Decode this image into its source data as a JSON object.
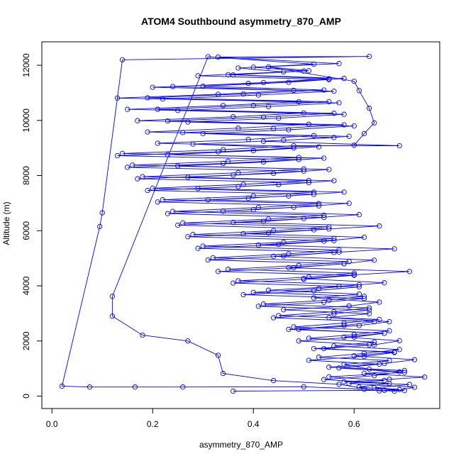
{
  "chart_data": {
    "type": "scatter",
    "title": "ATOM4 Southbound asymmetry_870_AMP",
    "xlabel": "asymmetry_870_AMP",
    "ylabel": "Altitude (m)",
    "xlim": [
      -0.02,
      0.77
    ],
    "ylim": [
      -450,
      12850
    ],
    "x_ticks": [
      0.0,
      0.2,
      0.4,
      0.6
    ],
    "x_tick_labels": [
      "0.0",
      "0.2",
      "0.4",
      "0.6"
    ],
    "y_ticks": [
      0,
      2000,
      4000,
      6000,
      8000,
      10000,
      12000
    ],
    "y_tick_labels": [
      "0",
      "2000",
      "4000",
      "6000",
      "8000",
      "10000",
      "12000"
    ],
    "grid": false,
    "legend": "none",
    "series_color": "#0000ff",
    "marker": "open-circle",
    "connected": true,
    "series": [
      {
        "values_xy": [
          [
            0.36,
            180
          ],
          [
            0.66,
            210
          ],
          [
            0.69,
            240
          ],
          [
            0.64,
            300
          ],
          [
            0.71,
            420
          ],
          [
            0.58,
            520
          ],
          [
            0.67,
            610
          ],
          [
            0.74,
            690
          ],
          [
            0.62,
            820
          ],
          [
            0.7,
            930
          ],
          [
            0.55,
            1050
          ],
          [
            0.66,
            1180
          ],
          [
            0.72,
            1320
          ],
          [
            0.6,
            1460
          ],
          [
            0.68,
            1600
          ],
          [
            0.52,
            1720
          ],
          [
            0.64,
            1860
          ],
          [
            0.69,
            2010
          ],
          [
            0.58,
            2140
          ],
          [
            0.66,
            2280
          ],
          [
            0.49,
            2420
          ],
          [
            0.61,
            2560
          ],
          [
            0.67,
            2700
          ],
          [
            0.55,
            2850
          ],
          [
            0.63,
            2990
          ],
          [
            0.46,
            3130
          ],
          [
            0.59,
            3270
          ],
          [
            0.65,
            3410
          ],
          [
            0.52,
            3560
          ],
          [
            0.61,
            3700
          ],
          [
            0.43,
            3840
          ],
          [
            0.57,
            3980
          ],
          [
            0.66,
            4110
          ],
          [
            0.5,
            4260
          ],
          [
            0.6,
            4400
          ],
          [
            0.71,
            4520
          ],
          [
            0.47,
            4660
          ],
          [
            0.58,
            4800
          ],
          [
            0.64,
            4930
          ],
          [
            0.44,
            5070
          ],
          [
            0.56,
            5210
          ],
          [
            0.68,
            5340
          ],
          [
            0.41,
            5480
          ],
          [
            0.54,
            5620
          ],
          [
            0.62,
            5760
          ],
          [
            0.38,
            5890
          ],
          [
            0.52,
            6030
          ],
          [
            0.65,
            6170
          ],
          [
            0.36,
            6300
          ],
          [
            0.5,
            6440
          ],
          [
            0.61,
            6580
          ],
          [
            0.34,
            6710
          ],
          [
            0.48,
            6850
          ],
          [
            0.59,
            6990
          ],
          [
            0.31,
            7120
          ],
          [
            0.47,
            7260
          ],
          [
            0.58,
            7400
          ],
          [
            0.29,
            7530
          ],
          [
            0.45,
            7670
          ],
          [
            0.56,
            7810
          ],
          [
            0.27,
            7940
          ],
          [
            0.44,
            8080
          ],
          [
            0.55,
            8220
          ],
          [
            0.25,
            8350
          ],
          [
            0.42,
            8490
          ],
          [
            0.54,
            8630
          ],
          [
            0.23,
            8760
          ],
          [
            0.4,
            8900
          ],
          [
            0.53,
            9040
          ],
          [
            0.21,
            9170
          ],
          [
            0.39,
            9310
          ],
          [
            0.52,
            9450
          ],
          [
            0.19,
            9580
          ],
          [
            0.37,
            9720
          ],
          [
            0.51,
            9860
          ],
          [
            0.17,
            9990
          ],
          [
            0.36,
            10130
          ],
          [
            0.5,
            10270
          ],
          [
            0.15,
            10400
          ],
          [
            0.34,
            10540
          ],
          [
            0.49,
            10680
          ],
          [
            0.13,
            10810
          ],
          [
            0.33,
            10950
          ],
          [
            0.48,
            11090
          ],
          [
            0.24,
            11230
          ],
          [
            0.42,
            11370
          ],
          [
            0.55,
            11510
          ],
          [
            0.36,
            11650
          ],
          [
            0.5,
            11790
          ],
          [
            0.4,
            11930
          ],
          [
            0.57,
            12060
          ],
          [
            0.33,
            12300
          ],
          [
            0.63,
            12320
          ],
          [
            0.14,
            12200
          ],
          [
            0.1,
            6650
          ],
          [
            0.095,
            6150
          ],
          [
            0.02,
            360
          ],
          [
            0.075,
            330
          ],
          [
            0.165,
            330
          ],
          [
            0.26,
            330
          ],
          [
            0.5,
            340
          ],
          [
            0.62,
            250
          ],
          [
            0.68,
            180
          ],
          [
            0.72,
            320
          ],
          [
            0.59,
            460
          ],
          [
            0.66,
            570
          ],
          [
            0.55,
            700
          ],
          [
            0.7,
            860
          ],
          [
            0.63,
            980
          ],
          [
            0.58,
            1150
          ],
          [
            0.67,
            1290
          ],
          [
            0.53,
            1410
          ],
          [
            0.62,
            1550
          ],
          [
            0.69,
            1690
          ],
          [
            0.56,
            1820
          ],
          [
            0.64,
            1960
          ],
          [
            0.51,
            2100
          ],
          [
            0.6,
            2230
          ],
          [
            0.67,
            2370
          ],
          [
            0.48,
            2510
          ],
          [
            0.58,
            2650
          ],
          [
            0.65,
            2780
          ],
          [
            0.45,
            2920
          ],
          [
            0.56,
            3060
          ],
          [
            0.63,
            3200
          ],
          [
            0.42,
            3340
          ],
          [
            0.55,
            3480
          ],
          [
            0.62,
            3620
          ],
          [
            0.4,
            3760
          ],
          [
            0.53,
            3900
          ],
          [
            0.61,
            4040
          ],
          [
            0.37,
            4180
          ],
          [
            0.51,
            4320
          ],
          [
            0.6,
            4460
          ],
          [
            0.35,
            4600
          ],
          [
            0.49,
            4740
          ],
          [
            0.59,
            4880
          ],
          [
            0.32,
            5020
          ],
          [
            0.47,
            5160
          ],
          [
            0.57,
            5300
          ],
          [
            0.3,
            5440
          ],
          [
            0.46,
            5580
          ],
          [
            0.56,
            5720
          ],
          [
            0.28,
            5860
          ],
          [
            0.44,
            6000
          ],
          [
            0.55,
            6140
          ],
          [
            0.26,
            6280
          ],
          [
            0.43,
            6420
          ],
          [
            0.54,
            6560
          ],
          [
            0.24,
            6700
          ],
          [
            0.41,
            6840
          ],
          [
            0.53,
            6980
          ],
          [
            0.22,
            7120
          ],
          [
            0.4,
            7260
          ],
          [
            0.52,
            7400
          ],
          [
            0.2,
            7540
          ],
          [
            0.38,
            7680
          ],
          [
            0.51,
            7820
          ],
          [
            0.18,
            7960
          ],
          [
            0.37,
            8100
          ],
          [
            0.5,
            8240
          ],
          [
            0.16,
            8380
          ],
          [
            0.35,
            8520
          ],
          [
            0.49,
            8660
          ],
          [
            0.14,
            8800
          ],
          [
            0.34,
            8940
          ],
          [
            0.48,
            9080
          ],
          [
            0.69,
            9080
          ],
          [
            0.42,
            9240
          ],
          [
            0.56,
            9380
          ],
          [
            0.3,
            9520
          ],
          [
            0.47,
            9660
          ],
          [
            0.6,
            9800
          ],
          [
            0.27,
            9940
          ],
          [
            0.45,
            10080
          ],
          [
            0.58,
            10220
          ],
          [
            0.25,
            10360
          ],
          [
            0.43,
            10500
          ],
          [
            0.57,
            10640
          ],
          [
            0.22,
            10780
          ],
          [
            0.41,
            10920
          ],
          [
            0.56,
            11060
          ],
          [
            0.2,
            11200
          ],
          [
            0.39,
            11340
          ],
          [
            0.55,
            11480
          ],
          [
            0.29,
            11620
          ],
          [
            0.46,
            11760
          ],
          [
            0.37,
            11900
          ],
          [
            0.52,
            12040
          ],
          [
            0.31,
            12310
          ],
          [
            0.12,
            3620
          ],
          [
            0.12,
            2900
          ],
          [
            0.18,
            2210
          ],
          [
            0.27,
            2000
          ],
          [
            0.33,
            1480
          ],
          [
            0.34,
            820
          ],
          [
            0.44,
            560
          ],
          [
            0.57,
            430
          ],
          [
            0.65,
            190
          ],
          [
            0.7,
            200
          ],
          [
            0.61,
            330
          ],
          [
            0.67,
            460
          ],
          [
            0.54,
            600
          ],
          [
            0.64,
            740
          ],
          [
            0.69,
            880
          ],
          [
            0.57,
            1020
          ],
          [
            0.65,
            1160
          ],
          [
            0.51,
            1300
          ],
          [
            0.62,
            1440
          ],
          [
            0.68,
            1580
          ],
          [
            0.54,
            1720
          ],
          [
            0.63,
            1860
          ],
          [
            0.49,
            2000
          ],
          [
            0.6,
            2140
          ],
          [
            0.66,
            2280
          ],
          [
            0.47,
            2420
          ],
          [
            0.58,
            2560
          ],
          [
            0.64,
            2700
          ],
          [
            0.44,
            2840
          ],
          [
            0.56,
            2980
          ],
          [
            0.63,
            3120
          ],
          [
            0.41,
            3260
          ],
          [
            0.54,
            3400
          ],
          [
            0.62,
            3540
          ],
          [
            0.38,
            3680
          ],
          [
            0.52,
            3820
          ],
          [
            0.61,
            3960
          ],
          [
            0.36,
            4100
          ],
          [
            0.5,
            4240
          ],
          [
            0.6,
            4380
          ],
          [
            0.33,
            4520
          ],
          [
            0.48,
            4660
          ],
          [
            0.58,
            4800
          ],
          [
            0.31,
            4940
          ],
          [
            0.46,
            5080
          ],
          [
            0.57,
            5220
          ],
          [
            0.29,
            5360
          ],
          [
            0.45,
            5500
          ],
          [
            0.56,
            5640
          ],
          [
            0.27,
            5780
          ],
          [
            0.43,
            5920
          ],
          [
            0.55,
            6060
          ],
          [
            0.25,
            6200
          ],
          [
            0.42,
            6340
          ],
          [
            0.54,
            6480
          ],
          [
            0.23,
            6620
          ],
          [
            0.4,
            6760
          ],
          [
            0.53,
            6900
          ],
          [
            0.21,
            7040
          ],
          [
            0.39,
            7180
          ],
          [
            0.52,
            7320
          ],
          [
            0.19,
            7460
          ],
          [
            0.37,
            7600
          ],
          [
            0.51,
            7740
          ],
          [
            0.17,
            7880
          ],
          [
            0.36,
            8020
          ],
          [
            0.5,
            8160
          ],
          [
            0.15,
            8300
          ],
          [
            0.34,
            8440
          ],
          [
            0.49,
            8580
          ],
          [
            0.13,
            8720
          ],
          [
            0.33,
            8860
          ],
          [
            0.48,
            9000
          ],
          [
            0.28,
            9140
          ],
          [
            0.46,
            9280
          ],
          [
            0.59,
            9420
          ],
          [
            0.26,
            9560
          ],
          [
            0.44,
            9700
          ],
          [
            0.58,
            9840
          ],
          [
            0.23,
            9980
          ],
          [
            0.42,
            10120
          ],
          [
            0.56,
            10260
          ],
          [
            0.21,
            10400
          ],
          [
            0.4,
            10540
          ],
          [
            0.55,
            10680
          ],
          [
            0.19,
            10820
          ],
          [
            0.38,
            10960
          ],
          [
            0.54,
            11100
          ],
          [
            0.3,
            11240
          ],
          [
            0.47,
            11380
          ],
          [
            0.58,
            11520
          ],
          [
            0.35,
            11660
          ],
          [
            0.51,
            11800
          ],
          [
            0.43,
            11940
          ],
          [
            0.6,
            11420
          ],
          [
            0.61,
            11080
          ],
          [
            0.63,
            10440
          ],
          [
            0.64,
            9910
          ],
          [
            0.62,
            9520
          ],
          [
            0.6,
            9100
          ]
        ]
      }
    ]
  }
}
